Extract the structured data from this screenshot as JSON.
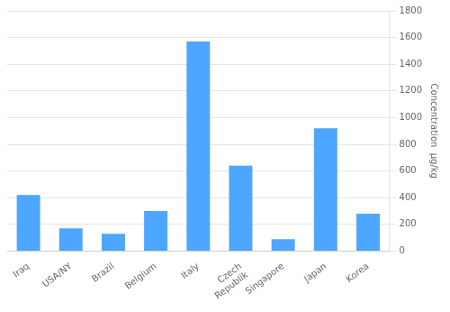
{
  "chart_data": {
    "type": "bar",
    "categories": [
      "Iraq",
      "USA/NY",
      "Brazil",
      "Belgium",
      "Italy",
      "Czech\nRepublik",
      "Singapore",
      "Japan",
      "Korea"
    ],
    "values": [
      420,
      170,
      130,
      300,
      1570,
      640,
      90,
      920,
      280
    ],
    "color": "#4da6ff",
    "ylabel": "Concentration  µg/kg",
    "ylim": [
      0,
      1800
    ],
    "yticks": [
      0,
      200,
      400,
      600,
      800,
      1000,
      1200,
      1400,
      1600,
      1800
    ],
    "grid": true
  }
}
